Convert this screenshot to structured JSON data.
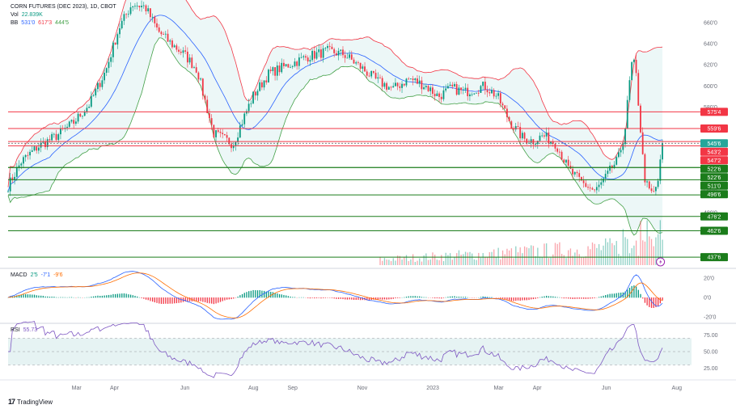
{
  "legend": {
    "symbol": "CORN FUTURES (DEC 2023), 1D, CBOT",
    "vol_label": "Vol",
    "vol_value": "22.839K",
    "bb_label": "BB",
    "bb_values": [
      "531'0",
      "617'3",
      "444'5"
    ],
    "macd_label": "MACD",
    "macd_values": [
      "2'5",
      "-7'1",
      "-9'6"
    ],
    "rsi_label": "RSI",
    "rsi_value": "55.73"
  },
  "brand": {
    "logo": "17",
    "name": "TradingView"
  },
  "colors": {
    "resistance": "#f23645",
    "support": "#089981",
    "support_line": "#1b7c1b",
    "bb_upper": "#f23645",
    "bb_lower": "#43a047",
    "bb_basis": "#2962ff",
    "bb_fill": "#e0f2f1",
    "up": "#089981",
    "down": "#f23645",
    "last_price": "#26a69a",
    "rsi": "#7e57c2",
    "rsi_band": "#e6f3f3",
    "macd_line": "#2962ff",
    "signal_line": "#ff6d00"
  },
  "chart_data": {
    "type": "candlestick",
    "price_axis": {
      "min": 430,
      "max": 680,
      "ticks": [
        {
          "value": 660,
          "label": "660'0"
        },
        {
          "value": 640,
          "label": "640'0"
        },
        {
          "value": 620,
          "label": "620'0"
        },
        {
          "value": 600,
          "label": "600'0"
        },
        {
          "value": 580,
          "label": "580'0"
        },
        {
          "value": 500,
          "label": "500'0"
        },
        {
          "value": 480,
          "label": "480'0"
        }
      ]
    },
    "time_axis": [
      {
        "label": "Mar",
        "pos": 0.105
      },
      {
        "label": "Apr",
        "pos": 0.163
      },
      {
        "label": "Jun",
        "pos": 0.271
      },
      {
        "label": "Aug",
        "pos": 0.376
      },
      {
        "label": "Sep",
        "pos": 0.436
      },
      {
        "label": "Nov",
        "pos": 0.543
      },
      {
        "label": "2023",
        "pos": 0.651
      },
      {
        "label": "Mar",
        "pos": 0.752
      },
      {
        "label": "Apr",
        "pos": 0.811
      },
      {
        "label": "Jun",
        "pos": 0.917
      },
      {
        "label": "Aug",
        "pos": 1.025
      }
    ],
    "resistance_levels": [
      {
        "value": 575.4,
        "label": "575'4"
      },
      {
        "value": 559.6,
        "label": "559'6"
      },
      {
        "value": 543.2,
        "label": "543'2"
      },
      {
        "value": 547.2,
        "label": "547'2"
      }
    ],
    "support_levels": [
      {
        "value": 522.6,
        "label": "522'6"
      },
      {
        "value": 522.6,
        "label": "522'6"
      },
      {
        "value": 511.0,
        "label": "511'0"
      },
      {
        "value": 496.6,
        "label": "496'6"
      },
      {
        "value": 476.2,
        "label": "476'2"
      },
      {
        "value": 462.6,
        "label": "462'6"
      },
      {
        "value": 437.6,
        "label": "437'6"
      }
    ],
    "last_price": {
      "value": 545.6,
      "label": "545'6"
    },
    "price_path": [
      [
        0.0,
        505
      ],
      [
        0.02,
        528
      ],
      [
        0.045,
        542
      ],
      [
        0.075,
        553
      ],
      [
        0.1,
        565
      ],
      [
        0.125,
        583
      ],
      [
        0.15,
        615
      ],
      [
        0.17,
        655
      ],
      [
        0.19,
        678
      ],
      [
        0.21,
        675
      ],
      [
        0.23,
        652
      ],
      [
        0.25,
        640
      ],
      [
        0.27,
        630
      ],
      [
        0.29,
        615
      ],
      [
        0.3,
        590
      ],
      [
        0.315,
        555
      ],
      [
        0.33,
        550
      ],
      [
        0.345,
        545
      ],
      [
        0.36,
        568
      ],
      [
        0.375,
        590
      ],
      [
        0.4,
        612
      ],
      [
        0.43,
        620
      ],
      [
        0.46,
        628
      ],
      [
        0.49,
        633
      ],
      [
        0.515,
        630
      ],
      [
        0.54,
        618
      ],
      [
        0.565,
        605
      ],
      [
        0.59,
        597
      ],
      [
        0.615,
        607
      ],
      [
        0.64,
        600
      ],
      [
        0.66,
        590
      ],
      [
        0.68,
        598
      ],
      [
        0.7,
        594
      ],
      [
        0.73,
        600
      ],
      [
        0.75,
        590
      ],
      [
        0.77,
        565
      ],
      [
        0.79,
        550
      ],
      [
        0.805,
        548
      ],
      [
        0.82,
        553
      ],
      [
        0.84,
        545
      ],
      [
        0.86,
        520
      ],
      [
        0.88,
        508
      ],
      [
        0.9,
        500
      ],
      [
        0.915,
        512
      ],
      [
        0.925,
        522
      ],
      [
        0.935,
        530
      ],
      [
        0.945,
        555
      ],
      [
        0.952,
        600
      ],
      [
        0.957,
        625
      ],
      [
        0.962,
        615
      ],
      [
        0.968,
        570
      ],
      [
        0.975,
        515
      ],
      [
        0.982,
        500
      ],
      [
        0.99,
        498
      ],
      [
        0.997,
        512
      ],
      [
        1.003,
        545
      ]
    ],
    "rsi": {
      "ticks": [
        {
          "value": 75,
          "label": "75.00"
        },
        {
          "value": 50,
          "label": "50.00"
        },
        {
          "value": 25,
          "label": "25.00"
        }
      ],
      "band": [
        30,
        70
      ],
      "last": 55.73
    },
    "macd": {
      "ticks": [
        {
          "value": 20,
          "label": "20'0"
        },
        {
          "value": 0,
          "label": "0'0"
        },
        {
          "value": -20,
          "label": "-20'0"
        }
      ]
    }
  }
}
